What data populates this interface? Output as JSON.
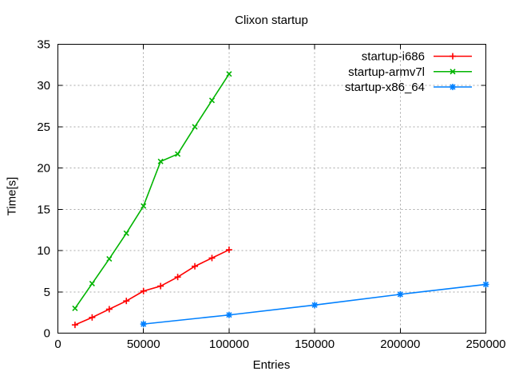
{
  "window": {
    "background": "#ffffff"
  },
  "chart_data": {
    "type": "line",
    "title": "Clixon startup",
    "xlabel": "Entries",
    "ylabel": "Time[s]",
    "xlim": [
      0,
      250000
    ],
    "ylim": [
      0,
      35
    ],
    "x_ticks": [
      0,
      50000,
      100000,
      150000,
      200000,
      250000
    ],
    "y_ticks": [
      0,
      5,
      10,
      15,
      20,
      25,
      30,
      35
    ],
    "grid": true,
    "grid_color": "#a8a8a8",
    "border_color": "#000000",
    "legend_position": "top-right-inside",
    "series": [
      {
        "name": "startup-i686",
        "color": "#ff0000",
        "marker": "plus",
        "x": [
          10000,
          20000,
          30000,
          40000,
          50000,
          60000,
          70000,
          80000,
          90000,
          100000
        ],
        "y": [
          1.0,
          1.9,
          2.9,
          3.9,
          5.1,
          5.7,
          6.8,
          8.1,
          9.1,
          10.1
        ]
      },
      {
        "name": "startup-armv7l",
        "color": "#00b400",
        "marker": "cross",
        "x": [
          10000,
          20000,
          30000,
          40000,
          50000,
          60000,
          70000,
          80000,
          90000,
          100000
        ],
        "y": [
          3.0,
          6.0,
          9.0,
          12.1,
          15.4,
          20.8,
          21.7,
          25.0,
          28.2,
          31.4
        ]
      },
      {
        "name": "startup-x86_64",
        "color": "#0080ff",
        "marker": "star",
        "x": [
          50000,
          100000,
          150000,
          200000,
          250000
        ],
        "y": [
          1.1,
          2.2,
          3.4,
          4.7,
          5.9
        ]
      }
    ]
  }
}
